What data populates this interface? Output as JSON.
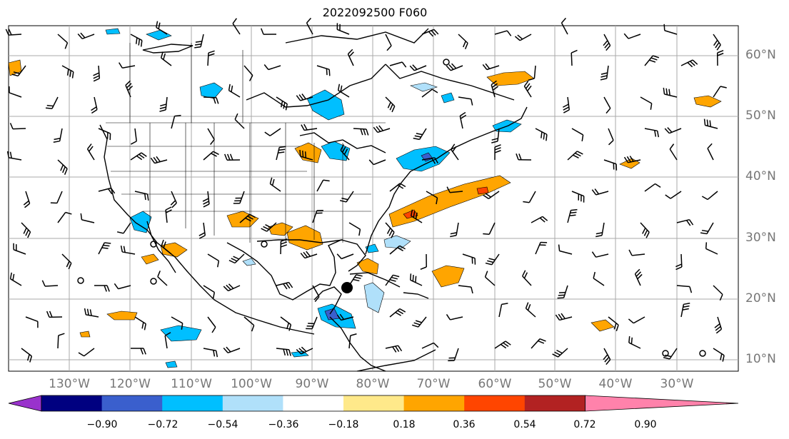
{
  "title": "2022092500 F060",
  "lat_labels": [
    "60°N",
    "50°N",
    "40°N",
    "30°N",
    "20°N",
    "10°N"
  ],
  "lon_labels": [
    "130°W",
    "120°W",
    "110°W",
    "100°W",
    "90°W",
    "80°W",
    "70°W",
    "60°W",
    "50°W",
    "40°W",
    "30°W"
  ],
  "colorbar": {
    "tick_labels": [
      "−0.90",
      "−0.72",
      "−0.54",
      "−0.36",
      "−0.18",
      "0.18",
      "0.36",
      "0.54",
      "0.72",
      "0.90"
    ],
    "colors": [
      "#9932cc",
      "#000080",
      "#3a5fcd",
      "#00bfff",
      "#b0e0fa",
      "#ffffff",
      "#ffe98a",
      "#ffa500",
      "#ff4500",
      "#b22222",
      "#ff82ab"
    ]
  },
  "colors": {
    "grid": "#aaaaaa",
    "coast": "#000000",
    "label": "#777777"
  }
}
